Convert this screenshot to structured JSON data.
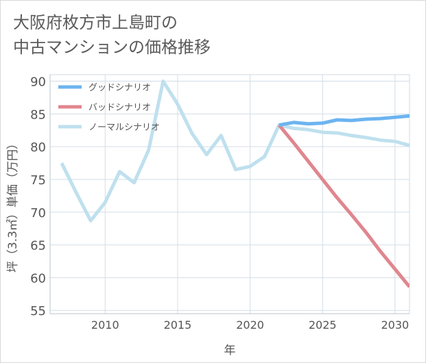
{
  "title": "大阪府枚方市上島町の\n中古マンションの価格推移",
  "chart_data": {
    "type": "line",
    "title": "大阪府枚方市上島町の中古マンションの価格推移",
    "xlabel": "年",
    "ylabel": "坪（3.3㎡）単価（万円）",
    "xlim": [
      2006.2,
      2031
    ],
    "ylim": [
      54.5,
      91
    ],
    "xticks": [
      2010,
      2015,
      2020,
      2025,
      2030
    ],
    "yticks": [
      55,
      60,
      65,
      70,
      75,
      80,
      85,
      90
    ],
    "grid": true,
    "legend_position": "top-left",
    "series": [
      {
        "name": "グッドシナリオ",
        "color": "#6cb4f0",
        "x": [
          2022,
          2023,
          2024,
          2025,
          2026,
          2027,
          2028,
          2029,
          2030,
          2031
        ],
        "y": [
          83.3,
          83.7,
          83.5,
          83.6,
          84.1,
          84.0,
          84.2,
          84.3,
          84.5,
          84.7
        ]
      },
      {
        "name": "バッドシナリオ",
        "color": "#e0868e",
        "x": [
          2022,
          2023,
          2024,
          2025,
          2026,
          2027,
          2028,
          2029,
          2030,
          2031
        ],
        "y": [
          83.3,
          80.6,
          77.8,
          75.0,
          72.2,
          69.6,
          66.9,
          64.0,
          61.3,
          58.6
        ]
      },
      {
        "name": "ノーマルシナリオ",
        "color": "#bfe0ee",
        "x": [
          2007,
          2008,
          2009,
          2010,
          2011,
          2012,
          2013,
          2014,
          2015,
          2016,
          2017,
          2018,
          2019,
          2020,
          2021,
          2022,
          2023,
          2024,
          2025,
          2026,
          2027,
          2028,
          2029,
          2030,
          2031
        ],
        "y": [
          77.5,
          73.0,
          68.7,
          71.5,
          76.2,
          74.5,
          79.5,
          90.0,
          86.5,
          82.0,
          78.8,
          81.7,
          76.5,
          77.0,
          78.5,
          83.3,
          82.8,
          82.6,
          82.2,
          82.1,
          81.7,
          81.4,
          81.0,
          80.8,
          80.2
        ]
      }
    ]
  }
}
